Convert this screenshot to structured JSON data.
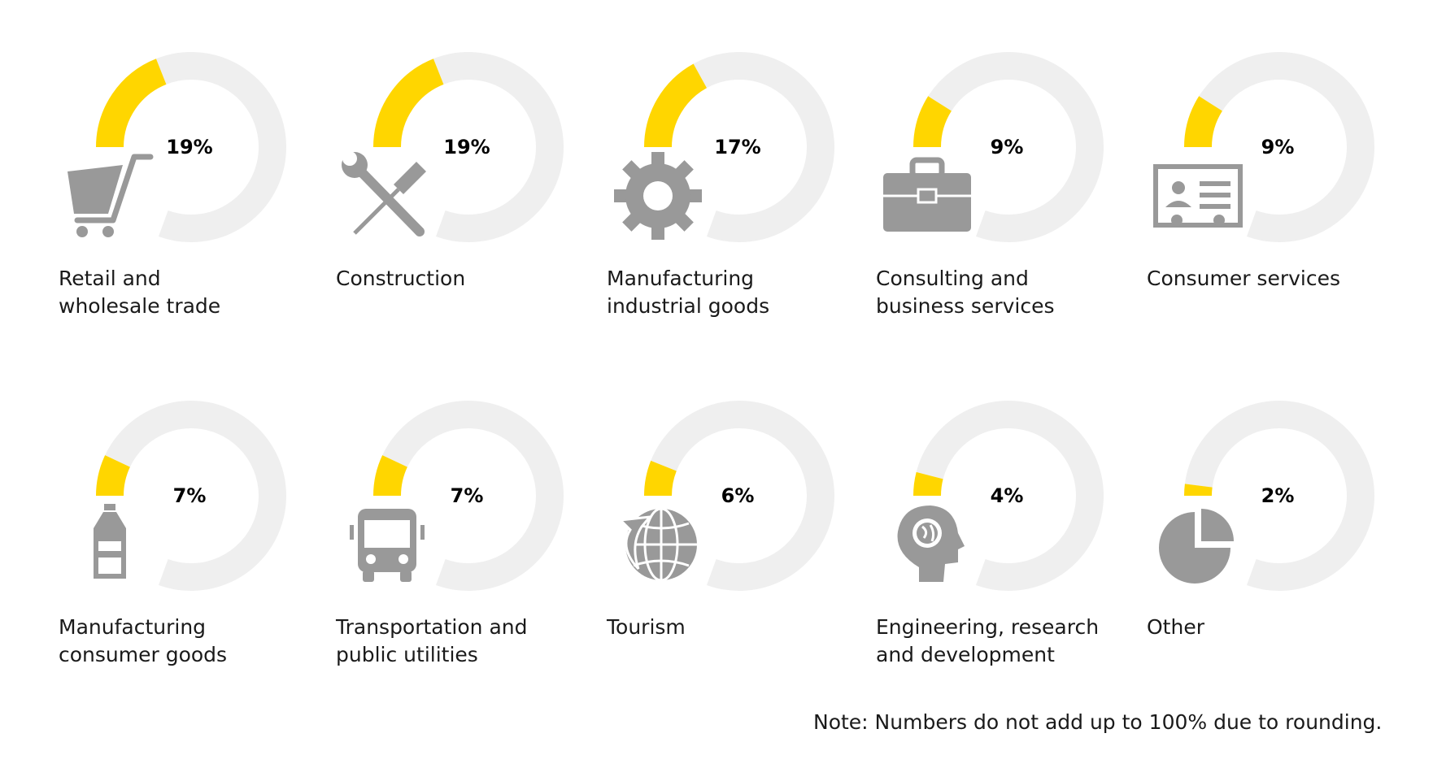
{
  "chart_data": {
    "type": "donut-grid",
    "value_unit": "%",
    "colors": {
      "value": "#FFD600",
      "track": "#EFEFEF",
      "icon": "#999999",
      "text": "#1a1a1a"
    },
    "items": [
      {
        "label": "Retail and\nwholesale trade",
        "value": 19,
        "value_label": "19%",
        "icon": "shopping-cart-icon"
      },
      {
        "label": "Construction",
        "value": 19,
        "value_label": "19%",
        "icon": "wrench-screwdriver-icon"
      },
      {
        "label": "Manufacturing\nindustrial goods",
        "value": 17,
        "value_label": "17%",
        "icon": "gear-icon"
      },
      {
        "label": "Consulting and\nbusiness services",
        "value": 9,
        "value_label": "9%",
        "icon": "briefcase-icon"
      },
      {
        "label": "Consumer services",
        "value": 9,
        "value_label": "9%",
        "icon": "id-card-icon"
      },
      {
        "label": "Manufacturing\nconsumer goods",
        "value": 7,
        "value_label": "7%",
        "icon": "bottle-icon"
      },
      {
        "label": "Transportation and\npublic utilities",
        "value": 7,
        "value_label": "7%",
        "icon": "bus-icon"
      },
      {
        "label": "Tourism",
        "value": 6,
        "value_label": "6%",
        "icon": "globe-arrow-icon"
      },
      {
        "label": "Engineering, research\nand development",
        "value": 4,
        "value_label": "4%",
        "icon": "head-globe-icon"
      },
      {
        "label": "Other",
        "value": 2,
        "value_label": "2%",
        "icon": "pie-chart-icon"
      }
    ]
  },
  "note": "Note: Numbers do not add up to 100% due to rounding."
}
